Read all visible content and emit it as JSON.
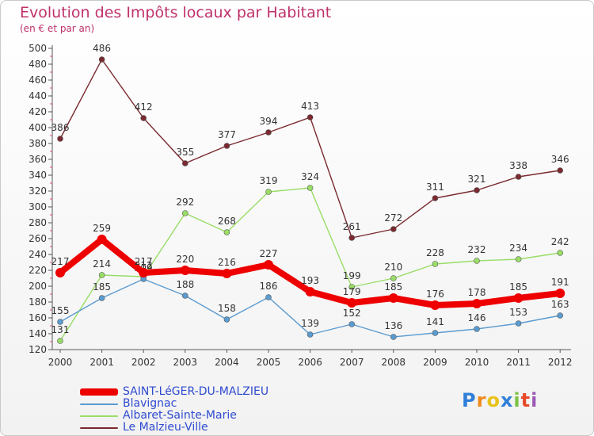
{
  "chart_data": {
    "type": "line",
    "title": "Evolution des Impôts locaux par Habitant",
    "subtitle": "(en € et par an)",
    "x": [
      "2000",
      "2001",
      "2002",
      "2003",
      "2004",
      "2005",
      "2006",
      "2007",
      "2008",
      "2009",
      "2010",
      "2011",
      "2012"
    ],
    "ylim": [
      120,
      500
    ],
    "yticks": [
      120,
      140,
      160,
      180,
      200,
      220,
      240,
      260,
      280,
      300,
      320,
      340,
      360,
      380,
      400,
      420,
      440,
      460,
      480,
      500
    ],
    "grid": false,
    "legend_position": "bottom-left",
    "series": [
      {
        "name": "SAINT-LéGER-DU-MALZIEU",
        "color": "#ee0000",
        "values": [
          217,
          259,
          217,
          220,
          216,
          227,
          193,
          179,
          185,
          176,
          178,
          185,
          191
        ]
      },
      {
        "name": "Blavignac",
        "color": "#5a9bd0",
        "values": [
          155,
          185,
          209,
          188,
          158,
          186,
          139,
          152,
          136,
          141,
          146,
          153,
          163
        ]
      },
      {
        "name": "Albaret-Sainte-Marie",
        "color": "#99dd66",
        "values": [
          131,
          214,
          212,
          292,
          268,
          319,
          324,
          199,
          210,
          228,
          232,
          234,
          242
        ]
      },
      {
        "name": "Le Malzieu-Ville",
        "color": "#7a2a30",
        "values": [
          386,
          486,
          412,
          355,
          377,
          394,
          413,
          261,
          272,
          311,
          321,
          338,
          346
        ]
      }
    ]
  },
  "logo": {
    "letters": [
      "P",
      "r",
      "o",
      "x",
      "i",
      "t",
      "i"
    ],
    "colors": [
      "#2e7fd8",
      "#f08a1c",
      "#e8c21a",
      "#2e7fd8",
      "#7dc242",
      "#e84a2a",
      "#9b59b6"
    ]
  }
}
